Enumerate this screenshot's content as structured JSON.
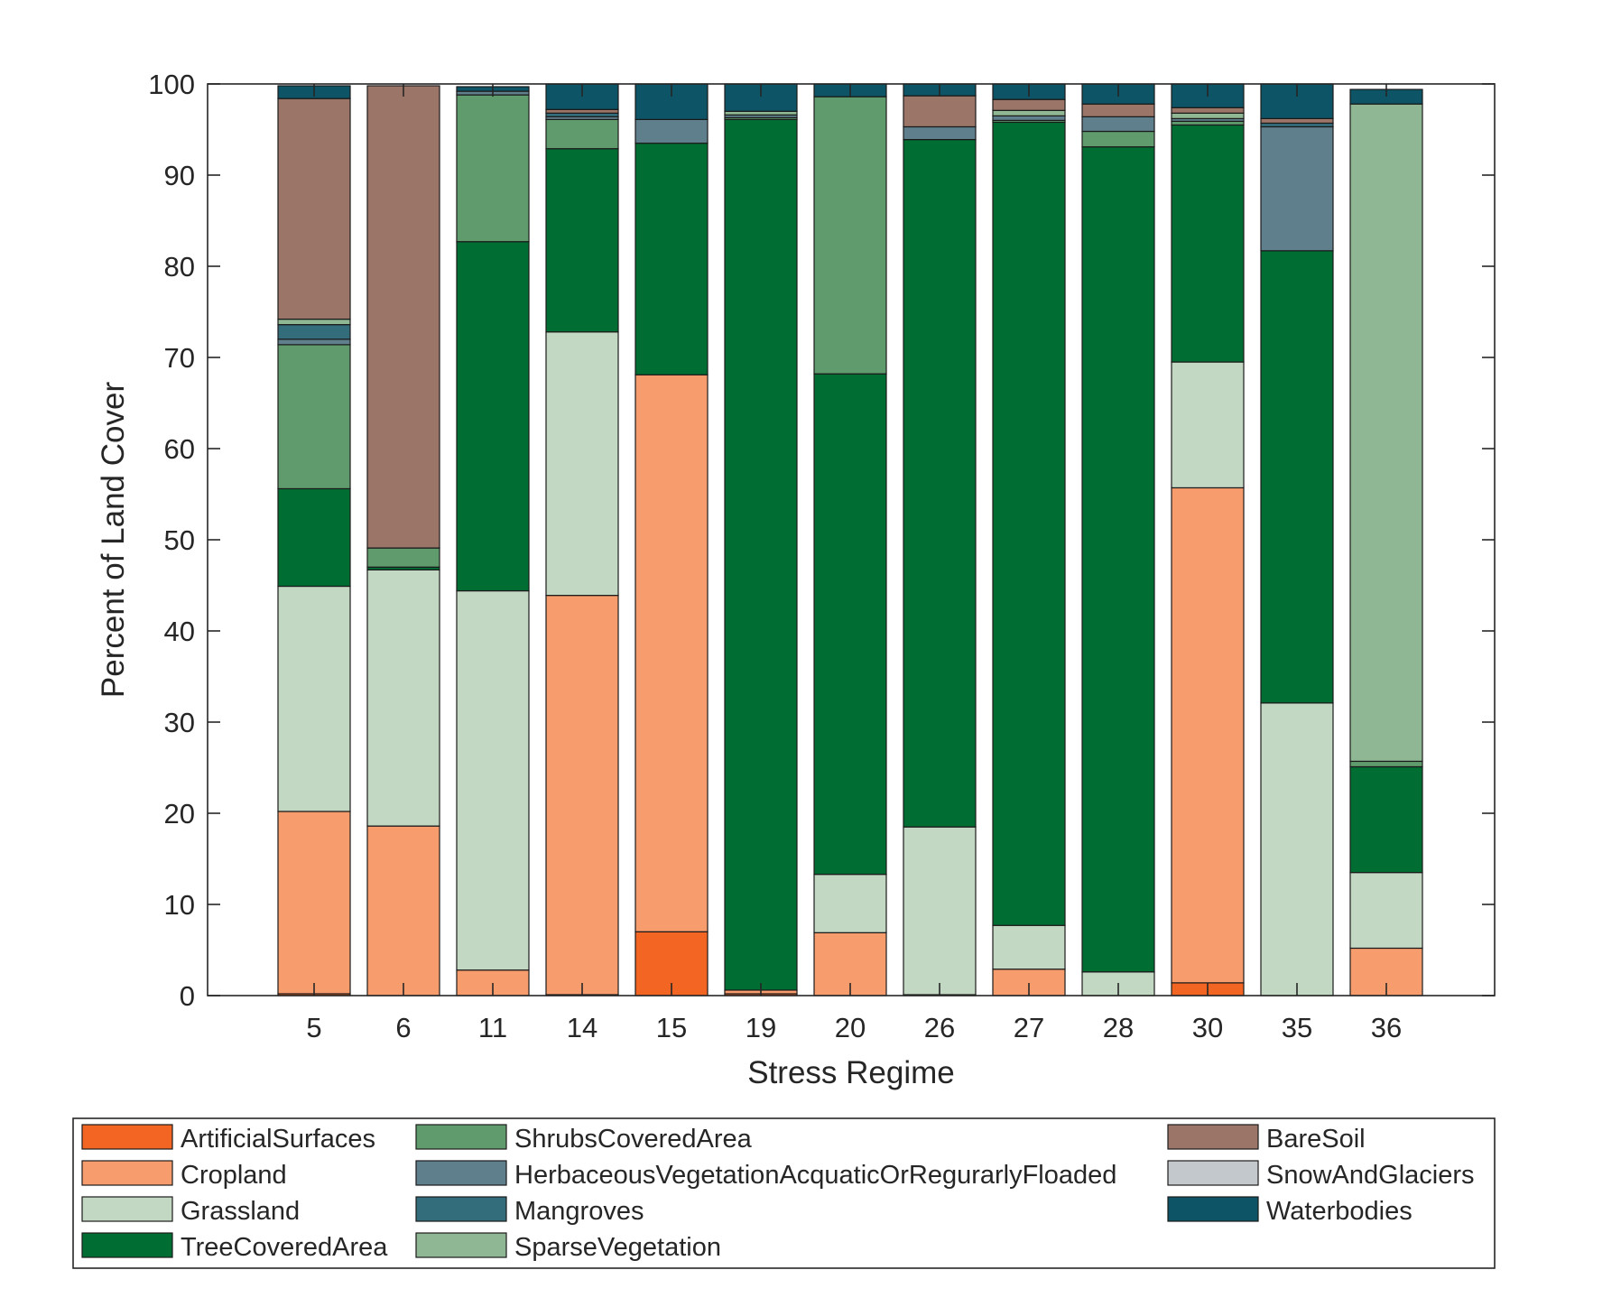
{
  "chart_data": {
    "type": "bar",
    "stacked": true,
    "xlabel": "Stress Regime",
    "ylabel": "Percent of Land Cover",
    "ylim": [
      0,
      100
    ],
    "yticks": [
      0,
      10,
      20,
      30,
      40,
      50,
      60,
      70,
      80,
      90,
      100
    ],
    "grid": false,
    "legend_position": "bottom",
    "categories": [
      "5",
      "6",
      "11",
      "14",
      "15",
      "19",
      "20",
      "26",
      "27",
      "28",
      "30",
      "35",
      "36"
    ],
    "series": [
      {
        "name": "ArtificialSurfaces",
        "color": "#f26522",
        "values": [
          0.2,
          0.0,
          0.0,
          0.1,
          7.0,
          0.2,
          0.0,
          0.0,
          0.0,
          0.0,
          1.4,
          0.0,
          0.0
        ]
      },
      {
        "name": "Cropland",
        "color": "#f79c6d",
        "values": [
          20.0,
          18.6,
          2.8,
          43.8,
          61.1,
          0.4,
          6.9,
          0.1,
          2.9,
          0.0,
          54.3,
          0.0,
          5.2
        ]
      },
      {
        "name": "Grassland",
        "color": "#c3d8c3",
        "values": [
          24.7,
          28.1,
          41.6,
          28.9,
          0.0,
          0.0,
          6.4,
          18.4,
          4.8,
          2.6,
          13.8,
          32.1,
          8.3
        ]
      },
      {
        "name": "TreeCoveredArea",
        "color": "#006e33",
        "values": [
          10.7,
          0.3,
          38.3,
          20.1,
          25.4,
          95.5,
          54.9,
          75.4,
          88.1,
          90.5,
          26.0,
          49.6,
          11.6
        ]
      },
      {
        "name": "ShrubsCoveredArea",
        "color": "#5f9b6c",
        "values": [
          15.8,
          2.1,
          16.1,
          3.2,
          0.0,
          0.2,
          30.4,
          0.0,
          0.2,
          1.7,
          0.4,
          0.0,
          0.6
        ]
      },
      {
        "name": "HerbaceousVegetationAcquaticOrRegurarlyFloaded",
        "color": "#607f8d",
        "values": [
          0.6,
          0.0,
          0.4,
          0.3,
          2.6,
          0.3,
          0.0,
          1.4,
          0.5,
          1.6,
          0.3,
          13.6,
          0.0
        ]
      },
      {
        "name": "Mangroves",
        "color": "#336c7a",
        "values": [
          1.6,
          0.0,
          0.0,
          0.4,
          0.0,
          0.0,
          0.0,
          0.0,
          0.0,
          0.0,
          0.0,
          0.4,
          0.0
        ]
      },
      {
        "name": "SparseVegetation",
        "color": "#8fb793",
        "values": [
          0.6,
          0.0,
          0.0,
          0.0,
          0.0,
          0.4,
          0.0,
          0.0,
          0.6,
          0.0,
          0.6,
          0.0,
          72.1
        ]
      },
      {
        "name": "BareSoil",
        "color": "#9b7668",
        "values": [
          24.2,
          50.7,
          0.0,
          0.4,
          0.0,
          0.0,
          0.0,
          3.4,
          1.2,
          1.4,
          0.6,
          0.5,
          0.0
        ]
      },
      {
        "name": "SnowAndGlaciers",
        "color": "#c3c8cc",
        "values": [
          0.0,
          0.0,
          0.0,
          0.0,
          0.0,
          0.0,
          0.0,
          0.0,
          0.0,
          0.0,
          0.0,
          0.0,
          0.0
        ]
      },
      {
        "name": "Waterbodies",
        "color": "#0d5466",
        "values": [
          1.4,
          0.0,
          0.5,
          2.8,
          3.9,
          3.0,
          1.4,
          1.3,
          1.7,
          2.2,
          2.6,
          3.8,
          1.6
        ]
      }
    ]
  }
}
